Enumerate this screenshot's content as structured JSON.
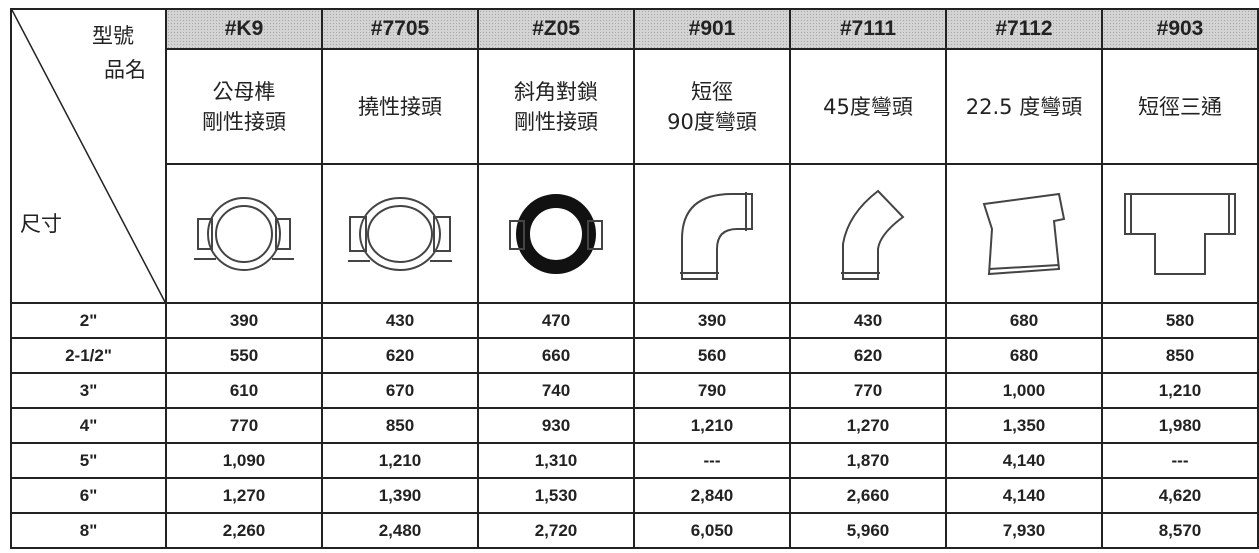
{
  "header": {
    "corner": {
      "model": "型號",
      "name": "品名",
      "size": "尺寸"
    }
  },
  "columns": [
    {
      "code": "#K9",
      "name": [
        "公母榫",
        "剛性接頭"
      ]
    },
    {
      "code": "#7705",
      "name": [
        "撓性接頭"
      ]
    },
    {
      "code": "#Z05",
      "name": [
        "斜角對鎖",
        "剛性接頭"
      ]
    },
    {
      "code": "#901",
      "name": [
        "短徑",
        "90度彎頭"
      ]
    },
    {
      "code": "#7111",
      "name": [
        "45度彎頭"
      ]
    },
    {
      "code": "#7112",
      "name": [
        "22.5 度彎頭"
      ]
    },
    {
      "code": "#903",
      "name": [
        "短徑三通"
      ]
    }
  ],
  "table": {
    "rows": [
      {
        "size": "2\"",
        "prices": [
          "390",
          "430",
          "470",
          "390",
          "430",
          "680",
          "580"
        ]
      },
      {
        "size": "2-1/2\"",
        "prices": [
          "550",
          "620",
          "660",
          "560",
          "620",
          "680",
          "850"
        ]
      },
      {
        "size": "3\"",
        "prices": [
          "610",
          "670",
          "740",
          "790",
          "770",
          "1,000",
          "1,210"
        ]
      },
      {
        "size": "4\"",
        "prices": [
          "770",
          "850",
          "930",
          "1,210",
          "1,270",
          "1,350",
          "1,980"
        ]
      },
      {
        "size": "5\"",
        "prices": [
          "1,090",
          "1,210",
          "1,310",
          "---",
          "1,870",
          "4,140",
          "---"
        ]
      },
      {
        "size": "6\"",
        "prices": [
          "1,270",
          "1,390",
          "1,530",
          "2,840",
          "2,660",
          "4,140",
          "4,620"
        ]
      },
      {
        "size": "8\"",
        "prices": [
          "2,260",
          "2,480",
          "2,720",
          "6,050",
          "5,960",
          "7,930",
          "8,570"
        ]
      }
    ]
  }
}
